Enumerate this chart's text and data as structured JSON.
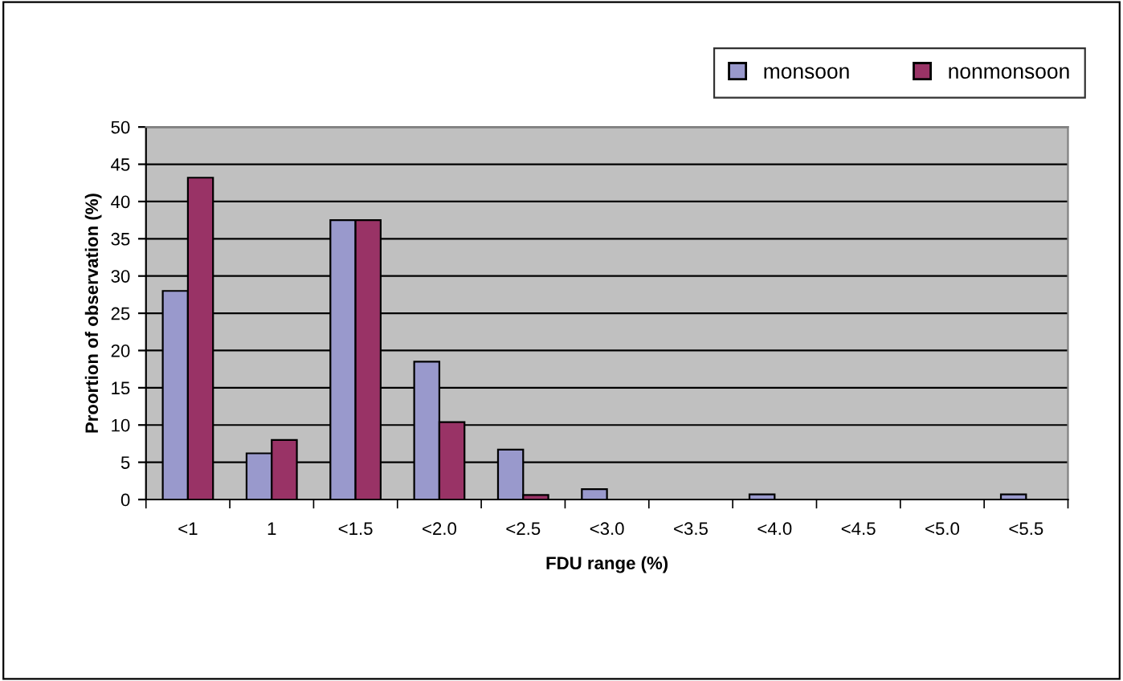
{
  "chart_data": {
    "type": "bar",
    "xlabel": "FDU range (%)",
    "ylabel": "Proortion of observation (%)",
    "categories": [
      "<1",
      "1",
      "<1.5",
      "<2.0",
      "<2.5",
      "<3.0",
      "<3.5",
      "<4.0",
      "<4.5",
      "<5.0",
      "<5.5"
    ],
    "series": [
      {
        "name": "monsoon",
        "color": "#9999cc",
        "values": [
          28,
          6.2,
          37.5,
          18.5,
          6.7,
          1.4,
          0,
          0.7,
          0,
          0,
          0.7
        ]
      },
      {
        "name": "nonmonsoon",
        "color": "#993366",
        "values": [
          43.2,
          8,
          37.5,
          10.4,
          0.6,
          0,
          0,
          0,
          0,
          0,
          0
        ]
      }
    ],
    "ylim": [
      0,
      50
    ],
    "yticks": [
      0,
      5,
      10,
      15,
      20,
      25,
      30,
      35,
      40,
      45,
      50
    ],
    "grid": "y",
    "legend": "top right"
  }
}
